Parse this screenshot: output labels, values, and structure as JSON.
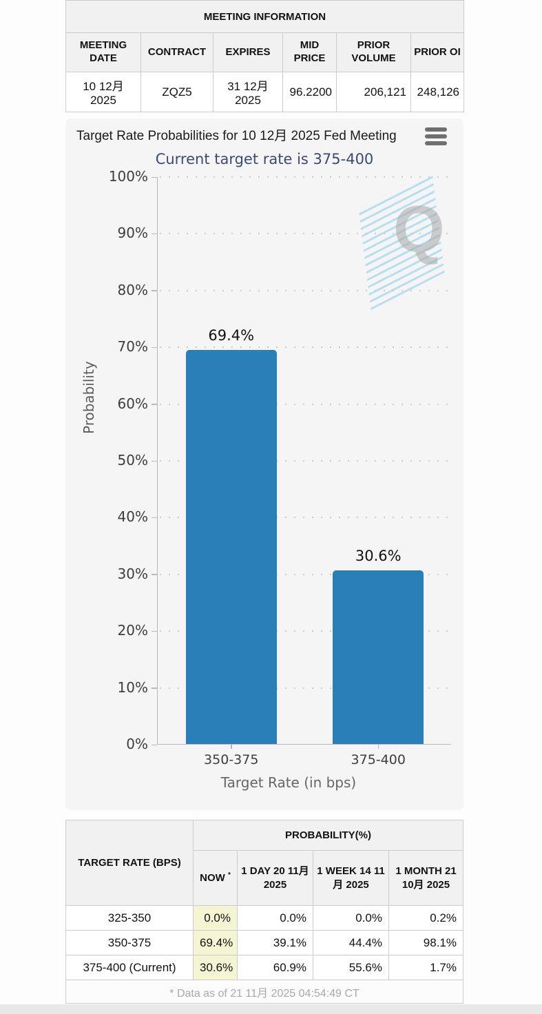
{
  "meeting_table": {
    "title": "MEETING INFORMATION",
    "columns": [
      "MEETING DATE",
      "CONTRACT",
      "EXPIRES",
      "MID PRICE",
      "PRIOR VOLUME",
      "PRIOR OI"
    ],
    "row": [
      "10 12月 2025",
      "ZQZ5",
      "31 12月 2025",
      "96.2200",
      "206,121",
      "248,126"
    ]
  },
  "chart": {
    "title": "Target Rate Probabilities for 10 12月 2025 Fed Meeting",
    "subtitle": "Current target rate is 375-400",
    "menu_icon": "hamburger-icon",
    "watermark_letter": "Q"
  },
  "chart_data": {
    "type": "bar",
    "title": "Target Rate Probabilities for 10 12月 2025 Fed Meeting",
    "subtitle": "Current target rate is 375-400",
    "categories": [
      "350-375",
      "375-400"
    ],
    "values": [
      69.4,
      30.6
    ],
    "value_labels": [
      "69.4%",
      "30.6%"
    ],
    "xlabel": "Target Rate (in bps)",
    "ylabel": "Probability",
    "ylim": [
      0,
      100
    ],
    "ytick_step": 10,
    "ytick_suffix": "%",
    "grid": "dotted-horizontal",
    "legend": "none",
    "bar_color": "#2b7fb9"
  },
  "probability_table": {
    "corner_header": "TARGET RATE (BPS)",
    "group_header": "PROBABILITY(%)",
    "now_header": "NOW",
    "now_sup": "*",
    "col_headers": [
      "1 DAY 20 11月 2025",
      "1 WEEK 14 11月 2025",
      "1 MONTH 21 10月 2025"
    ],
    "rows": [
      {
        "label": "325-350",
        "values": [
          "0.0%",
          "0.0%",
          "0.0%",
          "0.2%"
        ]
      },
      {
        "label": "350-375",
        "values": [
          "69.4%",
          "39.1%",
          "44.4%",
          "98.1%"
        ]
      },
      {
        "label": "375-400 (Current)",
        "values": [
          "30.6%",
          "60.9%",
          "55.6%",
          "1.7%"
        ]
      }
    ],
    "footnote": "* Data as of 21 11月 2025 04:54:49 CT"
  },
  "colors": {
    "bar": "#2b7fb9",
    "now_highlight": "#f5f5d3",
    "subtitle": "#3b4a73",
    "panel_bg": "#f5f5f6",
    "header_bg": "#f1f1f1"
  }
}
